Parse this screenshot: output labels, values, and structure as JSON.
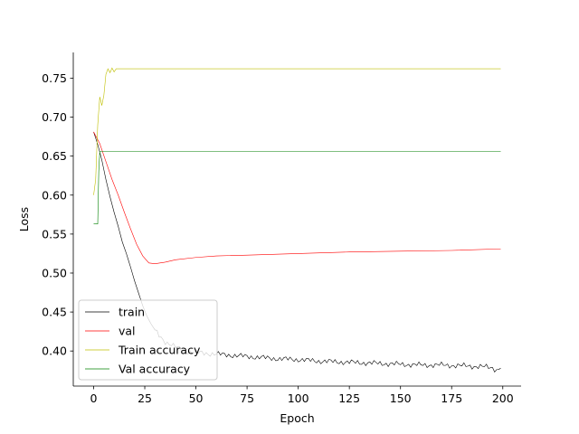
{
  "chart_data": {
    "type": "line",
    "title": "",
    "xlabel": "Epoch",
    "ylabel": "Loss",
    "xlim": [
      -9.95,
      208.95
    ],
    "ylim": [
      0.355,
      0.783
    ],
    "xticks": [
      0,
      25,
      50,
      75,
      100,
      125,
      150,
      175,
      200
    ],
    "yticks": [
      0.4,
      0.45,
      0.5,
      0.55,
      0.6,
      0.65,
      0.7,
      0.75
    ],
    "ytick_labels": [
      "0.40",
      "0.45",
      "0.50",
      "0.55",
      "0.60",
      "0.65",
      "0.70",
      "0.75"
    ],
    "grid": false,
    "legend_position": "lower-left",
    "series": [
      {
        "name": "train",
        "color": "#000000",
        "points": [
          [
            0,
            0.681
          ],
          [
            2,
            0.665
          ],
          [
            4,
            0.645
          ],
          [
            6,
            0.62
          ],
          [
            8,
            0.598
          ],
          [
            10,
            0.578
          ],
          [
            12,
            0.56
          ],
          [
            14,
            0.54
          ],
          [
            16,
            0.525
          ],
          [
            18,
            0.508
          ],
          [
            20,
            0.49
          ],
          [
            22,
            0.474
          ],
          [
            24,
            0.458
          ],
          [
            26,
            0.445
          ],
          [
            28,
            0.435
          ],
          [
            30,
            0.427
          ],
          [
            32,
            0.42
          ],
          [
            35,
            0.412
          ],
          [
            40,
            0.405
          ],
          [
            45,
            0.4
          ],
          [
            50,
            0.398
          ],
          [
            55,
            0.397
          ],
          [
            60,
            0.396
          ],
          [
            70,
            0.394
          ],
          [
            80,
            0.392
          ],
          [
            90,
            0.39
          ],
          [
            100,
            0.389
          ],
          [
            110,
            0.387
          ],
          [
            120,
            0.386
          ],
          [
            130,
            0.385
          ],
          [
            140,
            0.384
          ],
          [
            150,
            0.383
          ],
          [
            160,
            0.382
          ],
          [
            170,
            0.382
          ],
          [
            180,
            0.381
          ],
          [
            190,
            0.38
          ],
          [
            195,
            0.378
          ],
          [
            197,
            0.376
          ],
          [
            199,
            0.378
          ]
        ]
      },
      {
        "name": "val",
        "color": "#ff0000",
        "points": [
          [
            0,
            0.681
          ],
          [
            3,
            0.666
          ],
          [
            6,
            0.643
          ],
          [
            9,
            0.62
          ],
          [
            12,
            0.6
          ],
          [
            15,
            0.578
          ],
          [
            18,
            0.557
          ],
          [
            21,
            0.537
          ],
          [
            24,
            0.522
          ],
          [
            27,
            0.513
          ],
          [
            30,
            0.512
          ],
          [
            35,
            0.514
          ],
          [
            40,
            0.517
          ],
          [
            50,
            0.52
          ],
          [
            60,
            0.522
          ],
          [
            75,
            0.523
          ],
          [
            100,
            0.525
          ],
          [
            125,
            0.527
          ],
          [
            150,
            0.528
          ],
          [
            175,
            0.529
          ],
          [
            199,
            0.531
          ]
        ]
      },
      {
        "name": "Train accuracy",
        "color": "#bfbf00",
        "points": [
          [
            0,
            0.6
          ],
          [
            1,
            0.62
          ],
          [
            2,
            0.69
          ],
          [
            3,
            0.726
          ],
          [
            4,
            0.715
          ],
          [
            5,
            0.728
          ],
          [
            6,
            0.755
          ],
          [
            7,
            0.762
          ],
          [
            8,
            0.757
          ],
          [
            9,
            0.763
          ],
          [
            10,
            0.758
          ],
          [
            11,
            0.762
          ],
          [
            12,
            0.762
          ],
          [
            50,
            0.762
          ],
          [
            100,
            0.762
          ],
          [
            150,
            0.762
          ],
          [
            199,
            0.762
          ]
        ]
      },
      {
        "name": "Val accuracy",
        "color": "#008000",
        "points": [
          [
            0,
            0.563
          ],
          [
            1,
            0.563
          ],
          [
            2,
            0.563
          ],
          [
            2.5,
            0.63
          ],
          [
            3,
            0.656
          ],
          [
            4,
            0.656
          ],
          [
            50,
            0.656
          ],
          [
            100,
            0.656
          ],
          [
            150,
            0.656
          ],
          [
            199,
            0.656
          ]
        ]
      }
    ]
  }
}
